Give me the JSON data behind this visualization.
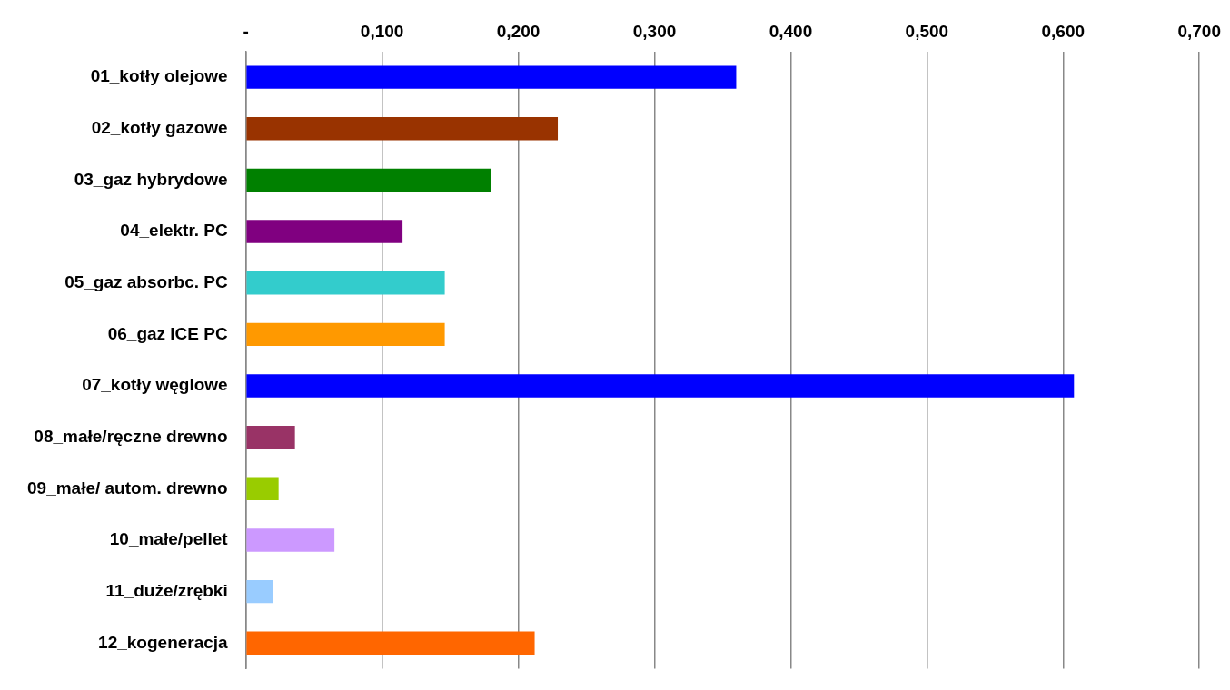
{
  "chart_data": {
    "type": "bar",
    "orientation": "horizontal",
    "categories": [
      "01_kotły olejowe",
      "02_kotły gazowe",
      "03_gaz hybrydowe",
      "04_elektr. PC",
      "05_gaz absorbc. PC",
      "06_gaz ICE PC",
      "07_kotły węglowe",
      "08_małe/ręczne drewno",
      "09_małe/ autom. drewno",
      "10_małe/pellet",
      "11_duże/zrębki",
      "12_kogeneracja"
    ],
    "values": [
      0.36,
      0.229,
      0.18,
      0.115,
      0.146,
      0.146,
      0.608,
      0.036,
      0.024,
      0.065,
      0.02,
      0.212
    ],
    "colors": [
      "#0000ff",
      "#993300",
      "#008000",
      "#800080",
      "#33cccc",
      "#ff9900",
      "#0000ff",
      "#993366",
      "#99cc00",
      "#cc99ff",
      "#99ccff",
      "#ff6600"
    ],
    "xlim": [
      0,
      0.7
    ],
    "xticks": [
      {
        "value": 0,
        "label": "-"
      },
      {
        "value": 0.1,
        "label": "0,100"
      },
      {
        "value": 0.2,
        "label": "0,200"
      },
      {
        "value": 0.3,
        "label": "0,300"
      },
      {
        "value": 0.4,
        "label": "0,400"
      },
      {
        "value": 0.5,
        "label": "0,500"
      },
      {
        "value": 0.6,
        "label": "0,600"
      },
      {
        "value": 0.7,
        "label": "0,700"
      }
    ],
    "grid": "x"
  }
}
